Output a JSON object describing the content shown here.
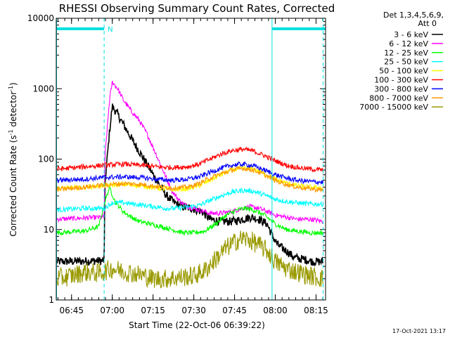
{
  "chart_data": {
    "type": "line",
    "title": "RHESSI Observing Summary Count Rates, Corrected",
    "xlabel": "Start Time (22-Oct-06 06:39:22)",
    "ylabel_main": "Corrected Count Rate (s",
    "ylabel_sup1": "-1",
    "ylabel_mid": " detector",
    "ylabel_sup2": "-1",
    "ylabel_end": ")",
    "yscale": "log",
    "ylim": [
      1,
      10000
    ],
    "y_ticks": [
      {
        "value": 1,
        "label": "1"
      },
      {
        "value": 10,
        "label": "10"
      },
      {
        "value": 100,
        "label": "100"
      },
      {
        "value": 1000,
        "label": "1000"
      },
      {
        "value": 10000,
        "label": "10000"
      }
    ],
    "xlim_minutes": [
      39.37,
      138.5
    ],
    "x_ticks": [
      {
        "minutes": 45,
        "label": "06:45"
      },
      {
        "minutes": 60,
        "label": "07:00"
      },
      {
        "minutes": 75,
        "label": "07:15"
      },
      {
        "minutes": 90,
        "label": "07:30"
      },
      {
        "minutes": 105,
        "label": "07:45"
      },
      {
        "minutes": 120,
        "label": "08:00"
      },
      {
        "minutes": 135,
        "label": "08:15"
      }
    ],
    "legend": {
      "header1": "Det 1,3,4,5,6,9,",
      "header2": "Att 0",
      "placement": "right"
    },
    "flag_label": "N",
    "night_bars": [
      {
        "start": 39.37,
        "end": 57.0
      },
      {
        "start": 118.8,
        "end": 138.5
      }
    ],
    "vlines_minutes": [
      39.5,
      57.0,
      118.8,
      137.6
    ],
    "series": [
      {
        "name": "3 - 6 keV",
        "color": "#000000",
        "points": [
          [
            39.5,
            3.5
          ],
          [
            57.0,
            3.6
          ],
          [
            57.3,
            45
          ],
          [
            59,
            250
          ],
          [
            60,
            560
          ],
          [
            62,
            430
          ],
          [
            65,
            270
          ],
          [
            68,
            170
          ],
          [
            71,
            110
          ],
          [
            74,
            70
          ],
          [
            77,
            45
          ],
          [
            80,
            30
          ],
          [
            83,
            24
          ],
          [
            86,
            21
          ],
          [
            89,
            20
          ],
          [
            93,
            18
          ],
          [
            96,
            14
          ],
          [
            100,
            13
          ],
          [
            104,
            13
          ],
          [
            108,
            14
          ],
          [
            111,
            15
          ],
          [
            114,
            14
          ],
          [
            117,
            12
          ],
          [
            119,
            8
          ],
          [
            121,
            6
          ],
          [
            124,
            5
          ],
          [
            127,
            4
          ],
          [
            130,
            3.8
          ],
          [
            134,
            3.5
          ],
          [
            137.6,
            3.5
          ]
        ]
      },
      {
        "name": "6 - 12 keV",
        "color": "#ff00ff",
        "points": [
          [
            39.5,
            14
          ],
          [
            57.0,
            15
          ],
          [
            57.3,
            110
          ],
          [
            59,
            700
          ],
          [
            60,
            1250
          ],
          [
            62,
            1000
          ],
          [
            64,
            700
          ],
          [
            67,
            480
          ],
          [
            70,
            350
          ],
          [
            73,
            220
          ],
          [
            76,
            120
          ],
          [
            79,
            65
          ],
          [
            82,
            35
          ],
          [
            85,
            25
          ],
          [
            88,
            21
          ],
          [
            92,
            19
          ],
          [
            96,
            17
          ],
          [
            100,
            17
          ],
          [
            104,
            18
          ],
          [
            108,
            20
          ],
          [
            111,
            21
          ],
          [
            114,
            20
          ],
          [
            117,
            18
          ],
          [
            120,
            16
          ],
          [
            124,
            15
          ],
          [
            128,
            14
          ],
          [
            133,
            14
          ],
          [
            137.6,
            13
          ]
        ]
      },
      {
        "name": "12 - 25 keV",
        "color": "#00ff00",
        "points": [
          [
            39.5,
            9
          ],
          [
            50,
            9.5
          ],
          [
            55,
            11
          ],
          [
            57.3,
            25
          ],
          [
            59,
            40
          ],
          [
            61,
            25
          ],
          [
            64,
            18
          ],
          [
            67,
            15
          ],
          [
            70,
            13
          ],
          [
            74,
            12
          ],
          [
            78,
            11
          ],
          [
            82,
            10
          ],
          [
            86,
            9
          ],
          [
            90,
            9
          ],
          [
            94,
            9.5
          ],
          [
            98,
            12
          ],
          [
            102,
            16
          ],
          [
            106,
            19
          ],
          [
            109,
            20
          ],
          [
            112,
            19
          ],
          [
            116,
            16
          ],
          [
            120,
            12
          ],
          [
            124,
            10
          ],
          [
            128,
            9.5
          ],
          [
            133,
            9
          ],
          [
            137.6,
            9
          ]
        ]
      },
      {
        "name": "25 - 50 keV",
        "color": "#00ffff",
        "points": [
          [
            39.5,
            19
          ],
          [
            50,
            20
          ],
          [
            57,
            20
          ],
          [
            60,
            24
          ],
          [
            64,
            24
          ],
          [
            68,
            23
          ],
          [
            72,
            22
          ],
          [
            76,
            21
          ],
          [
            80,
            20
          ],
          [
            84,
            20
          ],
          [
            88,
            21
          ],
          [
            92,
            22
          ],
          [
            96,
            26
          ],
          [
            100,
            30
          ],
          [
            104,
            34
          ],
          [
            108,
            36
          ],
          [
            112,
            35
          ],
          [
            116,
            31
          ],
          [
            120,
            27
          ],
          [
            124,
            25
          ],
          [
            128,
            24
          ],
          [
            133,
            23
          ],
          [
            137.6,
            23
          ]
        ]
      },
      {
        "name": "50 - 100 keV",
        "color": "#ffff00",
        "points": [
          [
            39.5,
            38
          ],
          [
            50,
            40
          ],
          [
            57,
            42
          ],
          [
            64,
            44
          ],
          [
            70,
            42
          ],
          [
            76,
            39
          ],
          [
            82,
            37
          ],
          [
            88,
            38
          ],
          [
            92,
            42
          ],
          [
            96,
            50
          ],
          [
            100,
            60
          ],
          [
            104,
            70
          ],
          [
            108,
            74
          ],
          [
            112,
            72
          ],
          [
            116,
            62
          ],
          [
            120,
            52
          ],
          [
            124,
            46
          ],
          [
            128,
            42
          ],
          [
            133,
            40
          ],
          [
            137.6,
            39
          ]
        ]
      },
      {
        "name": "100 - 300 keV",
        "color": "#ff0000",
        "points": [
          [
            39.5,
            72
          ],
          [
            50,
            78
          ],
          [
            57,
            82
          ],
          [
            64,
            85
          ],
          [
            70,
            82
          ],
          [
            76,
            78
          ],
          [
            82,
            76
          ],
          [
            88,
            78
          ],
          [
            92,
            85
          ],
          [
            96,
            100
          ],
          [
            100,
            118
          ],
          [
            104,
            132
          ],
          [
            108,
            138
          ],
          [
            112,
            130
          ],
          [
            116,
            112
          ],
          [
            120,
            95
          ],
          [
            124,
            82
          ],
          [
            128,
            76
          ],
          [
            133,
            72
          ],
          [
            137.6,
            70
          ]
        ]
      },
      {
        "name": "300 - 800 keV",
        "color": "#0000ff",
        "points": [
          [
            39.5,
            50
          ],
          [
            50,
            52
          ],
          [
            57,
            55
          ],
          [
            64,
            56
          ],
          [
            70,
            55
          ],
          [
            76,
            52
          ],
          [
            82,
            50
          ],
          [
            88,
            52
          ],
          [
            92,
            56
          ],
          [
            96,
            65
          ],
          [
            100,
            74
          ],
          [
            104,
            82
          ],
          [
            108,
            85
          ],
          [
            112,
            80
          ],
          [
            116,
            70
          ],
          [
            120,
            60
          ],
          [
            124,
            54
          ],
          [
            128,
            50
          ],
          [
            133,
            48
          ],
          [
            137.6,
            47
          ]
        ]
      },
      {
        "name": "800 - 7000 keV",
        "color": "#ff9900",
        "points": [
          [
            39.5,
            37
          ],
          [
            50,
            40
          ],
          [
            57,
            43
          ],
          [
            64,
            45
          ],
          [
            70,
            44
          ],
          [
            76,
            41
          ],
          [
            82,
            39
          ],
          [
            88,
            40
          ],
          [
            92,
            45
          ],
          [
            96,
            54
          ],
          [
            100,
            62
          ],
          [
            104,
            70
          ],
          [
            108,
            74
          ],
          [
            112,
            70
          ],
          [
            116,
            60
          ],
          [
            120,
            50
          ],
          [
            124,
            44
          ],
          [
            128,
            40
          ],
          [
            133,
            38
          ],
          [
            137.6,
            36
          ]
        ]
      },
      {
        "name": "7000 - 15000 keV",
        "color": "#999900",
        "points": [
          [
            39.5,
            2
          ],
          [
            45,
            2.2
          ],
          [
            50,
            2.5
          ],
          [
            55,
            2.4
          ],
          [
            60,
            2.8
          ],
          [
            65,
            2.5
          ],
          [
            70,
            2.3
          ],
          [
            75,
            2.0
          ],
          [
            80,
            2.0
          ],
          [
            85,
            2.1
          ],
          [
            90,
            2.2
          ],
          [
            94,
            2.6
          ],
          [
            98,
            3.8
          ],
          [
            102,
            5.5
          ],
          [
            106,
            7
          ],
          [
            108,
            7.5
          ],
          [
            111,
            7
          ],
          [
            114,
            6
          ],
          [
            117,
            5
          ],
          [
            120,
            3.5
          ],
          [
            124,
            2.8
          ],
          [
            128,
            2.5
          ],
          [
            133,
            2.2
          ],
          [
            137.6,
            2.0
          ]
        ]
      }
    ]
  },
  "footer": {
    "timestamp": "17-Oct-2021 13:17"
  }
}
